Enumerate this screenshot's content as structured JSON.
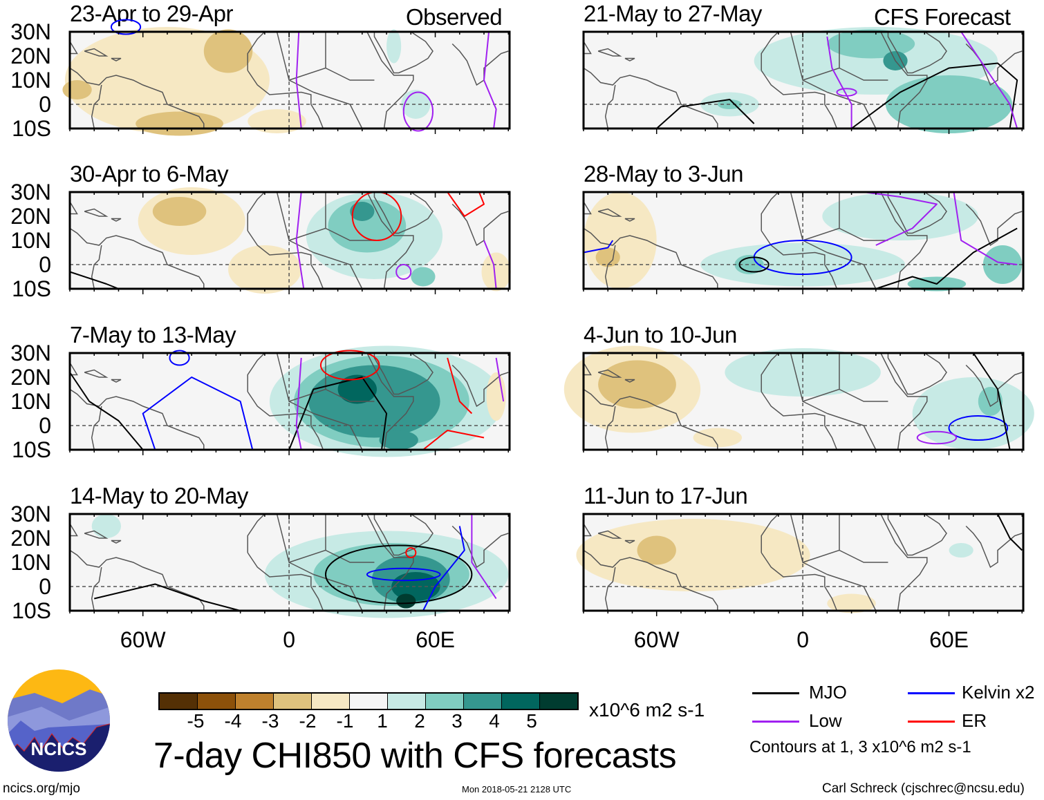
{
  "title": "7-day CHI850 with CFS forecasts",
  "columns": {
    "left_label": "Observed",
    "right_label": "CFS Forecast"
  },
  "panels": [
    {
      "period": "23-Apr to 29-Apr",
      "type": "observed"
    },
    {
      "period": "30-Apr to 6-May",
      "type": "observed"
    },
    {
      "period": "7-May to 13-May",
      "type": "observed"
    },
    {
      "period": "14-May to 20-May",
      "type": "observed"
    },
    {
      "period": "21-May to 27-May",
      "type": "forecast"
    },
    {
      "period": "28-May to 3-Jun",
      "type": "forecast"
    },
    {
      "period": "4-Jun to 10-Jun",
      "type": "forecast"
    },
    {
      "period": "11-Jun to 17-Jun",
      "type": "forecast"
    }
  ],
  "axes": {
    "lat_labels": [
      "30N",
      "20N",
      "10N",
      "0",
      "10S"
    ],
    "lon_labels": [
      "60W",
      "0",
      "60E"
    ]
  },
  "colorbar": {
    "labels": [
      "-5",
      "-4",
      "-3",
      "-2",
      "-1",
      "1",
      "2",
      "3",
      "4",
      "5"
    ],
    "colors": [
      "#543005",
      "#8c510a",
      "#bf812d",
      "#dfc27d",
      "#f6e8c3",
      "#f5f5f5",
      "#c7eae5",
      "#80cdc1",
      "#35978f",
      "#01665e",
      "#003c30"
    ],
    "units": "x10^6 m2 s-1"
  },
  "legend": {
    "items": [
      {
        "label": "MJO",
        "color": "#000000"
      },
      {
        "label": "Kelvin x2",
        "color": "#0000ff"
      },
      {
        "label": "Low",
        "color": "#a020f0"
      },
      {
        "label": "ER",
        "color": "#ff0000"
      }
    ],
    "note": "Contours at 1, 3 x10^6 m2 s-1"
  },
  "logo": {
    "text": "NCICS"
  },
  "footer": {
    "url": "ncics.org/mjo",
    "timestamp": "Mon 2018-05-21 2128 UTC",
    "author": "Carl Schreck (cjschrec@ncsu.edu)"
  }
}
